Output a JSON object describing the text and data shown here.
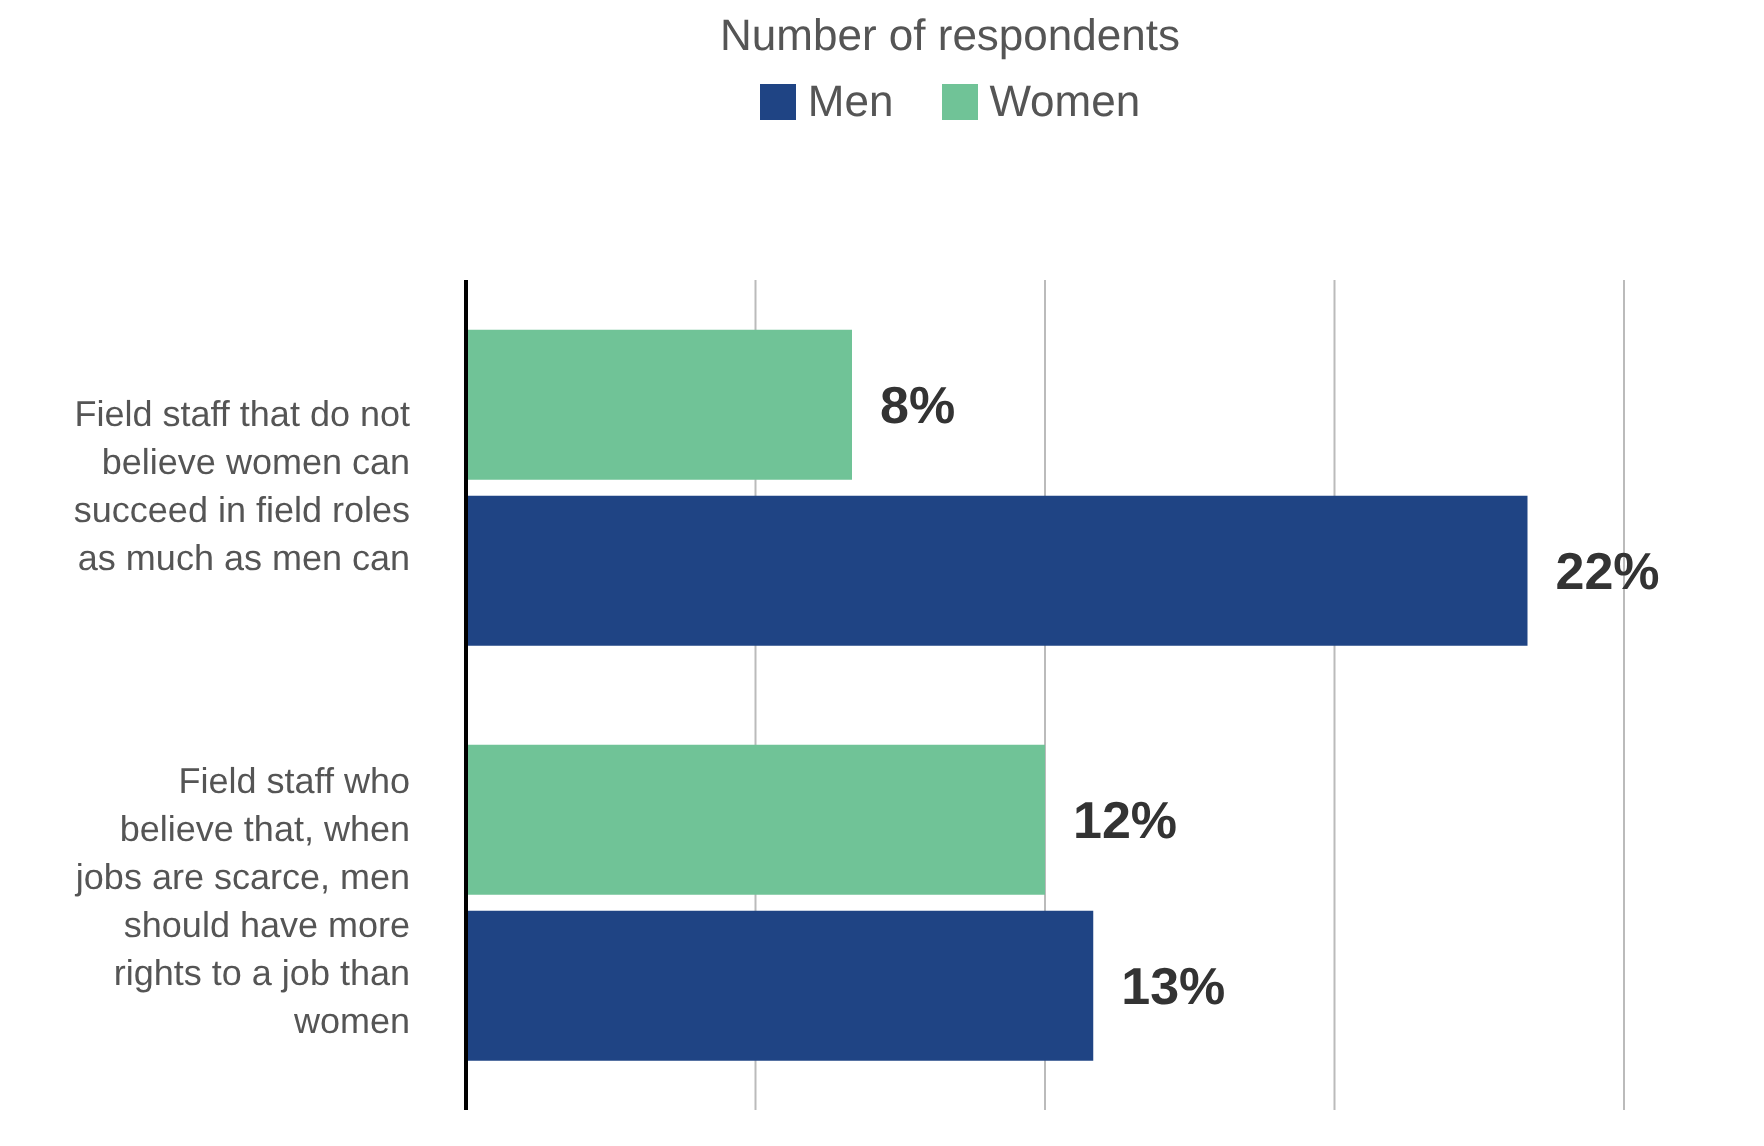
{
  "chart_data": {
    "type": "bar",
    "orientation": "horizontal",
    "title": "Number of respondents",
    "categories": [
      "Field staff that do not believe women can succeed in field roles as much as men can",
      "Field staff who believe that, when jobs are scarce, men should have more rights to a job than women"
    ],
    "series": [
      {
        "name": "Men",
        "color": "#1f4484",
        "values": [
          22,
          13
        ],
        "value_labels": [
          "22%",
          "13%"
        ]
      },
      {
        "name": "Women",
        "color": "#70c397",
        "values": [
          8,
          12
        ],
        "value_labels": [
          "8%",
          "12%"
        ]
      }
    ],
    "tick_labels": "y",
    "grid": "x",
    "legend": "top"
  }
}
